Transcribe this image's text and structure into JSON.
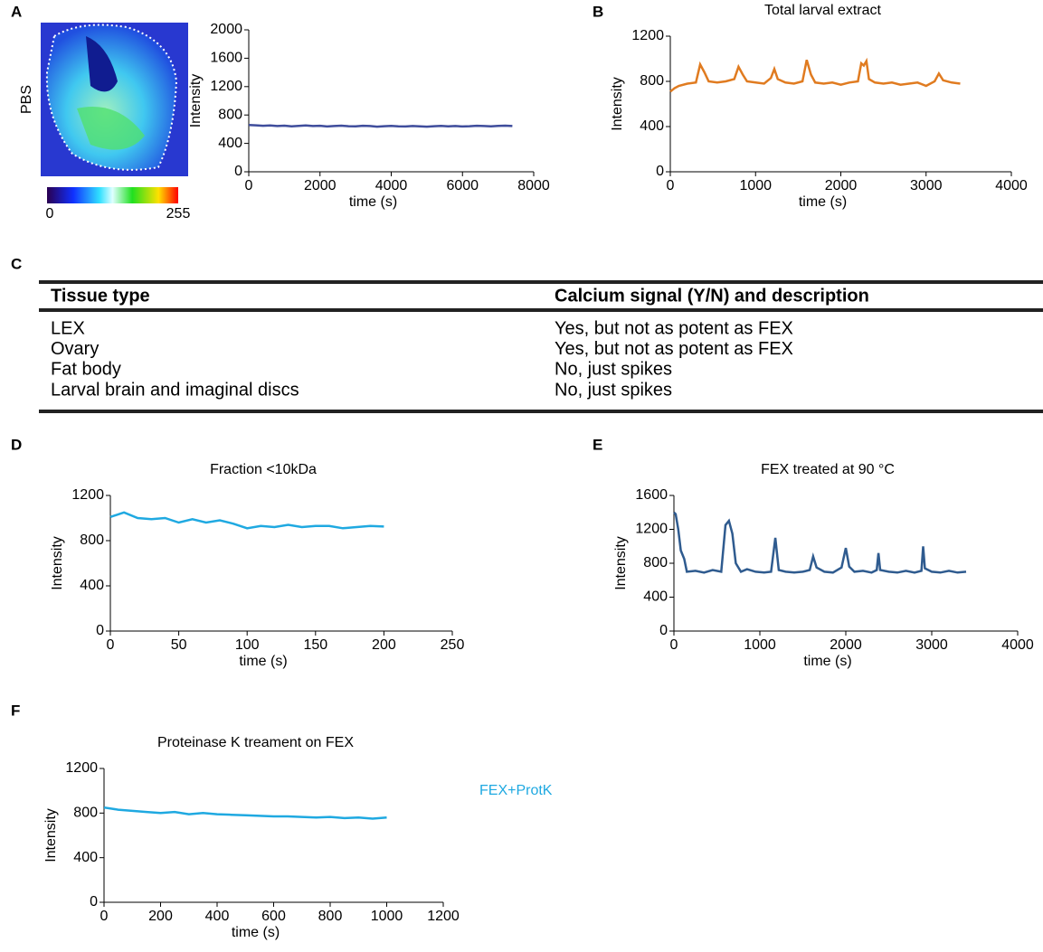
{
  "panel_labels": [
    "A",
    "B",
    "C",
    "D",
    "E",
    "F"
  ],
  "image": {
    "ylabel": "PBS",
    "colorbar_ticks": [
      0,
      255
    ]
  },
  "table": {
    "header": [
      "Tissue type",
      "Calcium signal (Y/N) and description"
    ],
    "rows": [
      [
        "LEX",
        "Yes, but not as potent as FEX"
      ],
      [
        "Ovary",
        "Yes, but not as potent as FEX"
      ],
      [
        "Fat body",
        "No, just spikes"
      ],
      [
        "Larval brain and imaginal discs",
        "No, just spikes"
      ]
    ]
  },
  "chart_data": [
    {
      "type": "line",
      "xlabel": "time (s)",
      "ylabel": "Intensity",
      "x": [
        0,
        200,
        400,
        600,
        800,
        1000,
        1200,
        1400,
        1600,
        1800,
        2000,
        2200,
        2400,
        2600,
        2800,
        3000,
        3200,
        3400,
        3600,
        3800,
        4000,
        4200,
        4400,
        4600,
        4800,
        5000,
        5200,
        5400,
        5600,
        5800,
        6000,
        6200,
        6400,
        6600,
        6800,
        7000,
        7200,
        7400
      ],
      "series": [
        {
          "color": "#3f4d9c",
          "values": [
            660,
            655,
            648,
            652,
            645,
            650,
            640,
            646,
            652,
            644,
            648,
            638,
            645,
            650,
            642,
            640,
            648,
            644,
            636,
            642,
            646,
            640,
            638,
            644,
            640,
            636,
            642,
            646,
            640,
            644,
            638,
            642,
            648,
            644,
            640,
            646,
            650,
            645
          ]
        }
      ],
      "xlim": [
        0,
        8000
      ],
      "xticks": [
        0,
        2000,
        4000,
        6000,
        8000
      ],
      "ylim": [
        0,
        2000
      ],
      "yticks": [
        0,
        400,
        800,
        1200,
        1600,
        2000
      ]
    },
    {
      "type": "line",
      "title": "Total larval extract",
      "xlabel": "time (s)",
      "ylabel": "Intensity",
      "x": [
        0,
        50,
        100,
        200,
        300,
        350,
        400,
        450,
        550,
        650,
        750,
        800,
        850,
        900,
        1000,
        1100,
        1180,
        1220,
        1260,
        1350,
        1450,
        1550,
        1600,
        1650,
        1700,
        1800,
        1900,
        2000,
        2100,
        2200,
        2240,
        2270,
        2300,
        2330,
        2400,
        2500,
        2600,
        2700,
        2800,
        2900,
        3000,
        3100,
        3150,
        3200,
        3300,
        3400
      ],
      "series": [
        {
          "color": "#e07b20",
          "values": [
            710,
            740,
            760,
            780,
            790,
            950,
            880,
            800,
            790,
            800,
            820,
            930,
            860,
            800,
            790,
            780,
            830,
            910,
            820,
            790,
            780,
            800,
            990,
            860,
            790,
            780,
            790,
            770,
            790,
            800,
            960,
            940,
            980,
            820,
            790,
            780,
            790,
            770,
            780,
            790,
            760,
            800,
            870,
            810,
            790,
            780
          ]
        }
      ],
      "xlim": [
        0,
        4000
      ],
      "xticks": [
        0,
        1000,
        2000,
        3000,
        4000
      ],
      "ylim": [
        0,
        1200
      ],
      "yticks": [
        0,
        400,
        800,
        1200
      ]
    },
    {
      "type": "line",
      "title": "Fraction <10kDa",
      "xlabel": "time (s)",
      "ylabel": "Intensity",
      "x": [
        0,
        10,
        20,
        30,
        40,
        50,
        60,
        70,
        80,
        90,
        100,
        110,
        120,
        130,
        140,
        150,
        160,
        170,
        180,
        190,
        200
      ],
      "series": [
        {
          "color": "#1fa9e1",
          "values": [
            1010,
            1050,
            1000,
            990,
            1000,
            960,
            990,
            960,
            980,
            950,
            910,
            930,
            920,
            940,
            920,
            930,
            930,
            910,
            920,
            930,
            925
          ]
        }
      ],
      "xlim": [
        0,
        250
      ],
      "xticks": [
        0,
        50,
        100,
        150,
        200,
        250
      ],
      "ylim": [
        0,
        1200
      ],
      "yticks": [
        0,
        400,
        800,
        1200
      ]
    },
    {
      "type": "line",
      "title": "FEX treated at 90 °C",
      "xlabel": "time (s)",
      "ylabel": "Intensity",
      "x": [
        0,
        20,
        50,
        80,
        120,
        150,
        250,
        350,
        450,
        550,
        600,
        640,
        680,
        720,
        780,
        850,
        950,
        1050,
        1130,
        1180,
        1220,
        1300,
        1400,
        1500,
        1580,
        1620,
        1660,
        1750,
        1850,
        1950,
        2000,
        2040,
        2100,
        2200,
        2300,
        2360,
        2380,
        2400,
        2500,
        2600,
        2700,
        2800,
        2880,
        2900,
        2920,
        3000,
        3100,
        3200,
        3300,
        3400
      ],
      "series": [
        {
          "color": "#2f5b8f",
          "values": [
            1400,
            1380,
            1200,
            950,
            850,
            700,
            710,
            690,
            720,
            700,
            1250,
            1300,
            1150,
            800,
            700,
            730,
            700,
            690,
            700,
            1100,
            720,
            700,
            690,
            700,
            720,
            880,
            750,
            700,
            690,
            750,
            980,
            760,
            700,
            710,
            690,
            720,
            920,
            720,
            700,
            690,
            710,
            690,
            710,
            1000,
            740,
            700,
            690,
            710,
            690,
            700
          ]
        }
      ],
      "xlim": [
        0,
        4000
      ],
      "xticks": [
        0,
        1000,
        2000,
        3000,
        4000
      ],
      "ylim": [
        0,
        1600
      ],
      "yticks": [
        0,
        400,
        800,
        1200,
        1600
      ]
    },
    {
      "type": "line",
      "title": "Proteinase K treament on FEX",
      "xlabel": "time (s)",
      "ylabel": "Intensity",
      "legend": "right",
      "x": [
        0,
        50,
        100,
        150,
        200,
        250,
        300,
        350,
        400,
        450,
        500,
        550,
        600,
        650,
        700,
        750,
        800,
        850,
        900,
        950,
        1000
      ],
      "series": [
        {
          "name": "FEX+ProtK",
          "color": "#1fa9e1",
          "values": [
            850,
            830,
            820,
            810,
            800,
            810,
            790,
            800,
            790,
            785,
            780,
            775,
            770,
            770,
            765,
            760,
            765,
            755,
            760,
            750,
            760
          ]
        }
      ],
      "xlim": [
        0,
        1200
      ],
      "xticks": [
        0,
        200,
        400,
        600,
        800,
        1000,
        1200
      ],
      "ylim": [
        0,
        1200
      ],
      "yticks": [
        0,
        400,
        800,
        1200
      ]
    }
  ]
}
